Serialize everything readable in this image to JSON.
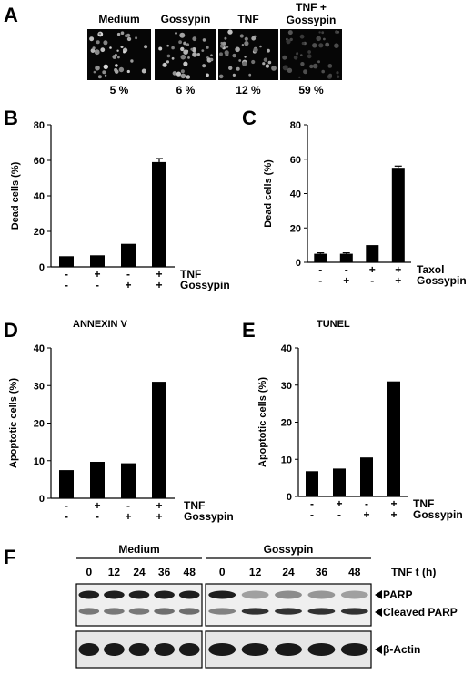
{
  "panel_a": {
    "letter": "A",
    "images": [
      {
        "label": "Medium",
        "percent": "5 %",
        "brightness": 0.85
      },
      {
        "label": "Gossypin",
        "percent": "6 %",
        "brightness": 0.8
      },
      {
        "label": "TNF",
        "percent": "12 %",
        "brightness": 0.75
      },
      {
        "label_line1": "TNF +",
        "label_line2": "Gossypin",
        "percent": "59 %",
        "brightness": 0.35
      }
    ]
  },
  "chart_data": [
    {
      "panel": "B",
      "type": "bar",
      "title": "",
      "ylabel": "Dead cells (%)",
      "ylim": [
        0,
        80
      ],
      "yticks": [
        0,
        20,
        40,
        60,
        80
      ],
      "values": [
        6,
        6.5,
        13,
        59
      ],
      "errors": [
        0,
        0,
        0,
        2
      ],
      "rows": [
        {
          "name": "TNF",
          "signs": [
            "-",
            "+",
            "-",
            "+"
          ]
        },
        {
          "name": "Gossypin",
          "signs": [
            "-",
            "-",
            "+",
            "+"
          ]
        }
      ]
    },
    {
      "panel": "C",
      "type": "bar",
      "title": "",
      "ylabel": "Dead cells (%)",
      "ylim": [
        0,
        80
      ],
      "yticks": [
        0,
        20,
        40,
        60,
        80
      ],
      "values": [
        5,
        5,
        10,
        55
      ],
      "errors": [
        0.5,
        0.5,
        0,
        1
      ],
      "rows": [
        {
          "name": "Taxol",
          "signs": [
            "-",
            "-",
            "+",
            "+"
          ]
        },
        {
          "name": "Gossypin",
          "signs": [
            "-",
            "+",
            "-",
            "+"
          ]
        }
      ]
    },
    {
      "panel": "D",
      "type": "bar",
      "title": "ANNEXIN V",
      "ylabel": "Apoptotic cells (%)",
      "ylim": [
        0,
        40
      ],
      "yticks": [
        0,
        10,
        20,
        30,
        40
      ],
      "values": [
        7.5,
        9.7,
        9.3,
        31
      ],
      "errors": [
        0,
        0,
        0,
        0
      ],
      "rows": [
        {
          "name": "TNF",
          "signs": [
            "-",
            "+",
            "-",
            "+"
          ]
        },
        {
          "name": "Gossypin",
          "signs": [
            "-",
            "-",
            "+",
            "+"
          ]
        }
      ]
    },
    {
      "panel": "E",
      "type": "bar",
      "title": "TUNEL",
      "ylabel": "Apoptotic cells (%)",
      "ylim": [
        0,
        40
      ],
      "yticks": [
        0,
        10,
        20,
        30,
        40
      ],
      "values": [
        6.8,
        7.5,
        10.5,
        31
      ],
      "errors": [
        0,
        0,
        0,
        0
      ],
      "rows": [
        {
          "name": "TNF",
          "signs": [
            "-",
            "+",
            "-",
            "+"
          ]
        },
        {
          "name": "Gossypin",
          "signs": [
            "-",
            "-",
            "+",
            "+"
          ]
        }
      ]
    }
  ],
  "panel_f": {
    "letter": "F",
    "groups": [
      "Medium",
      "Gossypin"
    ],
    "times": [
      "0",
      "12",
      "24",
      "36",
      "48"
    ],
    "time_label": "TNF  t (h)",
    "band_labels": [
      "PARP",
      "Cleaved PARP",
      "β-Actin"
    ],
    "medium_parp": [
      1,
      1,
      1,
      1,
      1
    ],
    "medium_cleaved": [
      0.55,
      0.55,
      0.55,
      0.6,
      0.6
    ],
    "gossypin_parp": [
      1,
      0.35,
      0.45,
      0.4,
      0.35
    ],
    "gossypin_cleaved": [
      0.5,
      0.9,
      0.9,
      0.9,
      0.9
    ],
    "actin": [
      1,
      1,
      1,
      1,
      1
    ]
  }
}
